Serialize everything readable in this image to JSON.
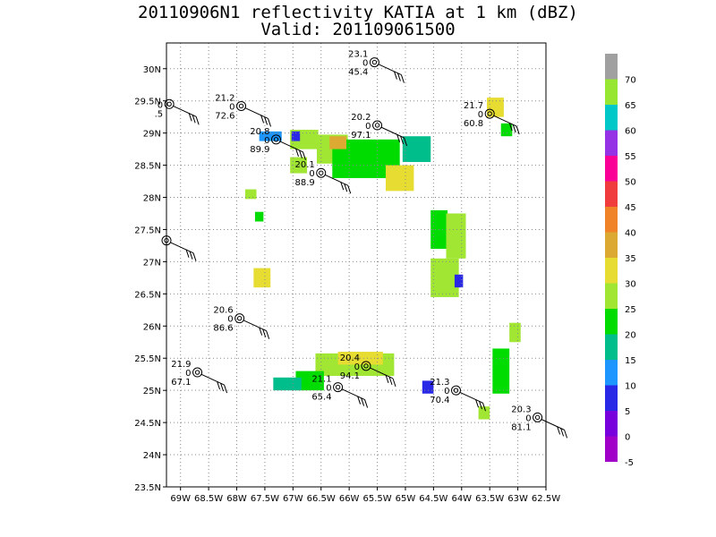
{
  "chart_data": {
    "type": "heatmap",
    "title": "20110906N1 reflectivity KATIA at 1 km (dBZ)",
    "subtitle": "Valid: 201109061500",
    "xlabel": "",
    "ylabel": "",
    "x_range": [
      -69.25,
      -62.5
    ],
    "y_range": [
      23.5,
      30.4
    ],
    "x_ticks": [
      "69W",
      "68.5W",
      "68W",
      "67.5W",
      "67W",
      "66.5W",
      "66W",
      "65.5W",
      "65W",
      "64.5W",
      "64W",
      "63.5W",
      "63W",
      "62.5W"
    ],
    "x_tick_values": [
      -69,
      -68.5,
      -68,
      -67.5,
      -67,
      -66.5,
      -66,
      -65.5,
      -65,
      -64.5,
      -64,
      -63.5,
      -63,
      -62.5
    ],
    "y_ticks": [
      "23.5N",
      "24N",
      "24.5N",
      "25N",
      "25.5N",
      "26N",
      "26.5N",
      "27N",
      "27.5N",
      "28N",
      "28.5N",
      "29N",
      "29.5N",
      "30N"
    ],
    "y_tick_values": [
      23.5,
      24,
      24.5,
      25,
      25.5,
      26,
      26.5,
      27,
      27.5,
      28,
      28.5,
      29,
      29.5,
      30
    ],
    "grid": true,
    "colorbar": {
      "labels": [
        "70",
        "65",
        "60",
        "55",
        "50",
        "45",
        "40",
        "35",
        "30",
        "25",
        "20",
        "15",
        "10",
        "5",
        "0",
        "-5"
      ],
      "colors": [
        "#a0a0a0",
        "#96e632",
        "#00c8c8",
        "#9632e6",
        "#fa0096",
        "#f03c3c",
        "#f08228",
        "#dcaa32",
        "#e6dc32",
        "#a0e632",
        "#00dc00",
        "#00be8c",
        "#1e96ff",
        "#2828e6",
        "#7800dc",
        "#a000c8"
      ]
    },
    "cells": [
      {
        "lon": -66.8,
        "lat": 28.9,
        "w": 0.5,
        "h": 0.3,
        "dbz": 25
      },
      {
        "lon": -66.3,
        "lat": 28.75,
        "w": 0.55,
        "h": 0.45,
        "dbz": 25
      },
      {
        "lon": -65.7,
        "lat": 28.6,
        "w": 1.2,
        "h": 0.6,
        "dbz": 20
      },
      {
        "lon": -66.2,
        "lat": 28.85,
        "w": 0.3,
        "h": 0.2,
        "dbz": 35
      },
      {
        "lon": -65.1,
        "lat": 28.3,
        "w": 0.5,
        "h": 0.4,
        "dbz": 30
      },
      {
        "lon": -64.8,
        "lat": 28.75,
        "w": 0.5,
        "h": 0.4,
        "dbz": 15
      },
      {
        "lon": -67.4,
        "lat": 28.95,
        "w": 0.4,
        "h": 0.15,
        "dbz": 10
      },
      {
        "lon": -66.9,
        "lat": 28.5,
        "w": 0.3,
        "h": 0.25,
        "dbz": 25
      },
      {
        "lon": -67.75,
        "lat": 28.05,
        "w": 0.2,
        "h": 0.15,
        "dbz": 25
      },
      {
        "lon": -67.6,
        "lat": 27.7,
        "w": 0.15,
        "h": 0.15,
        "dbz": 20
      },
      {
        "lon": -67.55,
        "lat": 26.75,
        "w": 0.3,
        "h": 0.3,
        "dbz": 30
      },
      {
        "lon": -64.4,
        "lat": 27.5,
        "w": 0.3,
        "h": 0.6,
        "dbz": 20
      },
      {
        "lon": -64.1,
        "lat": 27.4,
        "w": 0.35,
        "h": 0.7,
        "dbz": 25
      },
      {
        "lon": -64.3,
        "lat": 26.75,
        "w": 0.5,
        "h": 0.6,
        "dbz": 25
      },
      {
        "lon": -63.4,
        "lat": 29.4,
        "w": 0.3,
        "h": 0.3,
        "dbz": 30
      },
      {
        "lon": -63.2,
        "lat": 29.05,
        "w": 0.2,
        "h": 0.2,
        "dbz": 20
      },
      {
        "lon": -63.3,
        "lat": 25.3,
        "w": 0.3,
        "h": 0.7,
        "dbz": 20
      },
      {
        "lon": -63.05,
        "lat": 25.9,
        "w": 0.2,
        "h": 0.3,
        "dbz": 25
      },
      {
        "lon": -65.9,
        "lat": 25.4,
        "w": 1.4,
        "h": 0.35,
        "dbz": 25
      },
      {
        "lon": -65.8,
        "lat": 25.5,
        "w": 0.8,
        "h": 0.2,
        "dbz": 30
      },
      {
        "lon": -66.7,
        "lat": 25.15,
        "w": 0.5,
        "h": 0.3,
        "dbz": 20
      },
      {
        "lon": -67.1,
        "lat": 25.1,
        "w": 0.5,
        "h": 0.2,
        "dbz": 15
      },
      {
        "lon": -64.6,
        "lat": 25.05,
        "w": 0.2,
        "h": 0.2,
        "dbz": 5
      },
      {
        "lon": -63.6,
        "lat": 24.65,
        "w": 0.2,
        "h": 0.2,
        "dbz": 25
      },
      {
        "lon": -64.05,
        "lat": 26.7,
        "w": 0.15,
        "h": 0.2,
        "dbz": 5
      },
      {
        "lon": -66.95,
        "lat": 28.95,
        "w": 0.15,
        "h": 0.15,
        "dbz": 5
      }
    ],
    "stations": [
      {
        "lon": -65.55,
        "lat": 30.1,
        "temp": "23.1",
        "flag": "0",
        "rh": "45.4"
      },
      {
        "lon": -69.2,
        "lat": 29.45,
        "temp": "",
        "flag": "0",
        "rh": ".5"
      },
      {
        "lon": -67.92,
        "lat": 29.42,
        "temp": "21.2",
        "flag": "0",
        "rh": "72.6"
      },
      {
        "lon": -67.3,
        "lat": 28.9,
        "temp": "20.8",
        "flag": "0",
        "rh": "89.9"
      },
      {
        "lon": -65.5,
        "lat": 29.12,
        "temp": "20.2",
        "flag": "0",
        "rh": "97.1"
      },
      {
        "lon": -63.5,
        "lat": 29.3,
        "temp": "21.7",
        "flag": "0",
        "rh": "60.8"
      },
      {
        "lon": -66.5,
        "lat": 28.38,
        "temp": "20.1",
        "flag": "0",
        "rh": "88.9"
      },
      {
        "lon": -69.25,
        "lat": 27.33,
        "temp": "",
        "flag": "",
        "rh": ""
      },
      {
        "lon": -67.95,
        "lat": 26.12,
        "temp": "20.6",
        "flag": "0",
        "rh": "86.6"
      },
      {
        "lon": -65.7,
        "lat": 25.38,
        "temp": "20.4",
        "flag": "0",
        "rh": "94.1"
      },
      {
        "lon": -66.2,
        "lat": 25.05,
        "temp": "21.1",
        "flag": "0",
        "rh": "65.4"
      },
      {
        "lon": -68.7,
        "lat": 25.28,
        "temp": "21.9",
        "flag": "0",
        "rh": "67.1"
      },
      {
        "lon": -64.1,
        "lat": 25.0,
        "temp": "21.3",
        "flag": "0",
        "rh": "70.4"
      },
      {
        "lon": -62.65,
        "lat": 24.58,
        "temp": "20.3",
        "flag": "0",
        "rh": "81.1"
      }
    ]
  }
}
